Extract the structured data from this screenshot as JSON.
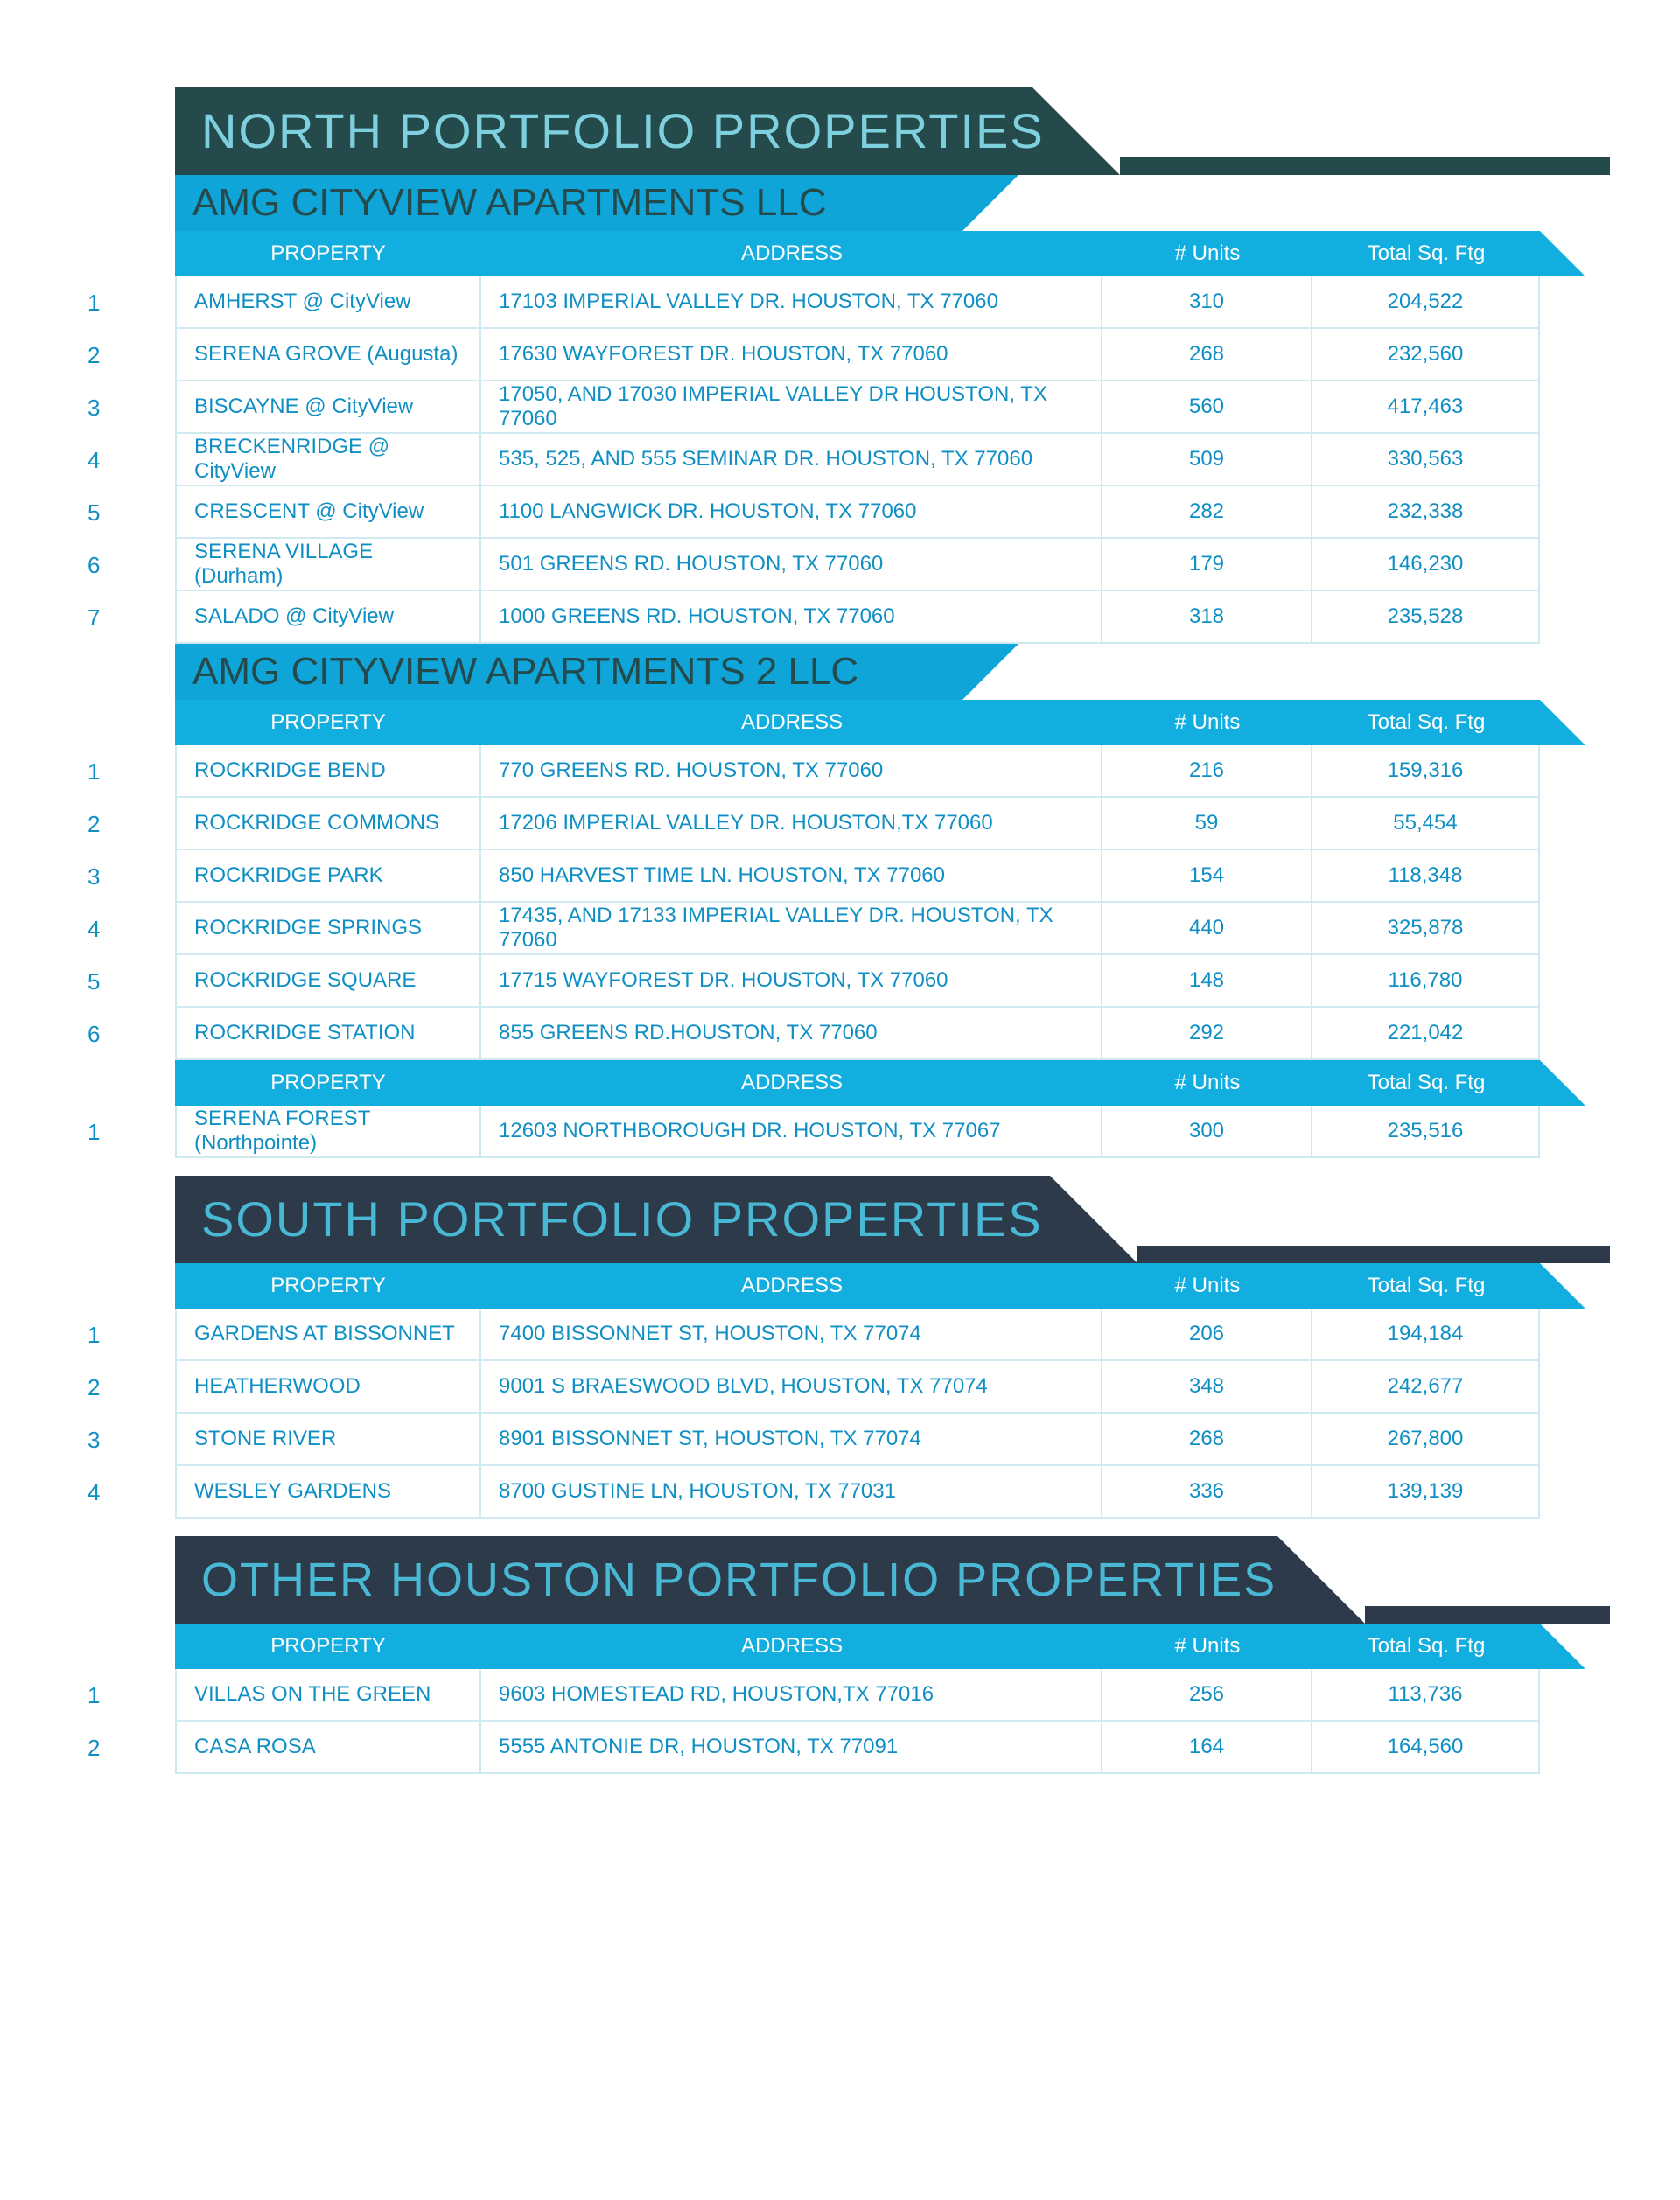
{
  "colors": {
    "north_banner": "#254a4c",
    "dark_banner": "#2d3a4a",
    "teal_text": "#7fd0de",
    "blue_text": "#49b8d4",
    "sub_banner": "#10a5d8",
    "header_bar": "#12aee0",
    "row_text": "#0f8fc4",
    "border": "#d0e8f0"
  },
  "columns": {
    "property": "PROPERTY",
    "address": "ADDRESS",
    "units": "# Units",
    "sqft": "Total Sq. Ftg"
  },
  "sections": [
    {
      "title": "NORTH PORTFOLIO PROPERTIES",
      "class": "north",
      "groups": [
        {
          "subtitle": "AMG CITYVIEW APARTMENTS LLC",
          "rows": [
            {
              "n": "1",
              "property": "AMHERST @ CityView",
              "address": "17103 IMPERIAL VALLEY DR. HOUSTON, TX 77060",
              "units": "310",
              "sqft": "204,522"
            },
            {
              "n": "2",
              "property": "SERENA GROVE (Augusta)",
              "address": "17630 WAYFOREST DR. HOUSTON, TX 77060",
              "units": "268",
              "sqft": "232,560"
            },
            {
              "n": "3",
              "property": "BISCAYNE @ CityView",
              "address": "17050, AND 17030 IMPERIAL VALLEY DR HOUSTON, TX 77060",
              "units": "560",
              "sqft": "417,463"
            },
            {
              "n": "4",
              "property": "BRECKENRIDGE @ CityView",
              "address": "535, 525, AND 555 SEMINAR DR. HOUSTON, TX 77060",
              "units": "509",
              "sqft": "330,563"
            },
            {
              "n": "5",
              "property": "CRESCENT @ CityView",
              "address": "1100 LANGWICK DR. HOUSTON, TX 77060",
              "units": "282",
              "sqft": "232,338"
            },
            {
              "n": "6",
              "property": "SERENA VILLAGE (Durham)",
              "address": "501 GREENS RD. HOUSTON, TX 77060",
              "units": "179",
              "sqft": "146,230"
            },
            {
              "n": "7",
              "property": "SALADO @ CityView",
              "address": "1000 GREENS RD. HOUSTON, TX 77060",
              "units": "318",
              "sqft": "235,528"
            }
          ]
        },
        {
          "subtitle": "AMG CITYVIEW APARTMENTS 2 LLC",
          "rows": [
            {
              "n": "1",
              "property": "ROCKRIDGE BEND",
              "address": "770 GREENS RD. HOUSTON, TX 77060",
              "units": "216",
              "sqft": "159,316"
            },
            {
              "n": "2",
              "property": "ROCKRIDGE COMMONS",
              "address": "17206 IMPERIAL VALLEY DR. HOUSTON,TX 77060",
              "units": "59",
              "sqft": "55,454"
            },
            {
              "n": "3",
              "property": "ROCKRIDGE PARK",
              "address": "850 HARVEST TIME LN. HOUSTON, TX 77060",
              "units": "154",
              "sqft": "118,348"
            },
            {
              "n": "4",
              "property": "ROCKRIDGE SPRINGS",
              "address": "17435, AND 17133 IMPERIAL VALLEY DR. HOUSTON, TX 77060",
              "units": "440",
              "sqft": "325,878"
            },
            {
              "n": "5",
              "property": "ROCKRIDGE SQUARE",
              "address": "17715 WAYFOREST DR. HOUSTON, TX 77060",
              "units": "148",
              "sqft": "116,780"
            },
            {
              "n": "6",
              "property": "ROCKRIDGE STATION",
              "address": "855 GREENS RD.HOUSTON, TX 77060",
              "units": "292",
              "sqft": "221,042"
            }
          ]
        },
        {
          "subtitle": null,
          "rows": [
            {
              "n": "1",
              "property": "SERENA FOREST (Northpointe)",
              "address": "12603 NORTHBOROUGH DR. HOUSTON, TX 77067",
              "units": "300",
              "sqft": "235,516"
            }
          ]
        }
      ]
    },
    {
      "title": "SOUTH PORTFOLIO PROPERTIES",
      "class": "south",
      "groups": [
        {
          "subtitle": null,
          "rows": [
            {
              "n": "1",
              "property": "GARDENS AT BISSONNET",
              "address": "7400 BISSONNET ST, HOUSTON, TX 77074",
              "units": "206",
              "sqft": "194,184"
            },
            {
              "n": "2",
              "property": "HEATHERWOOD",
              "address": "9001 S BRAESWOOD BLVD, HOUSTON, TX 77074",
              "units": "348",
              "sqft": "242,677"
            },
            {
              "n": "3",
              "property": "STONE RIVER",
              "address": "8901 BISSONNET ST, HOUSTON, TX 77074",
              "units": "268",
              "sqft": "267,800"
            },
            {
              "n": "4",
              "property": "WESLEY GARDENS",
              "address": "8700 GUSTINE LN, HOUSTON, TX 77031",
              "units": "336",
              "sqft": "139,139"
            }
          ]
        }
      ]
    },
    {
      "title": "OTHER HOUSTON PORTFOLIO PROPERTIES",
      "class": "other",
      "groups": [
        {
          "subtitle": null,
          "rows": [
            {
              "n": "1",
              "property": "VILLAS ON THE GREEN",
              "address": "9603 HOMESTEAD RD, HOUSTON,TX 77016",
              "units": "256",
              "sqft": "113,736"
            },
            {
              "n": "2",
              "property": "CASA ROSA",
              "address": "5555 ANTONIE DR, HOUSTON, TX 77091",
              "units": "164",
              "sqft": "164,560"
            }
          ]
        }
      ]
    }
  ]
}
